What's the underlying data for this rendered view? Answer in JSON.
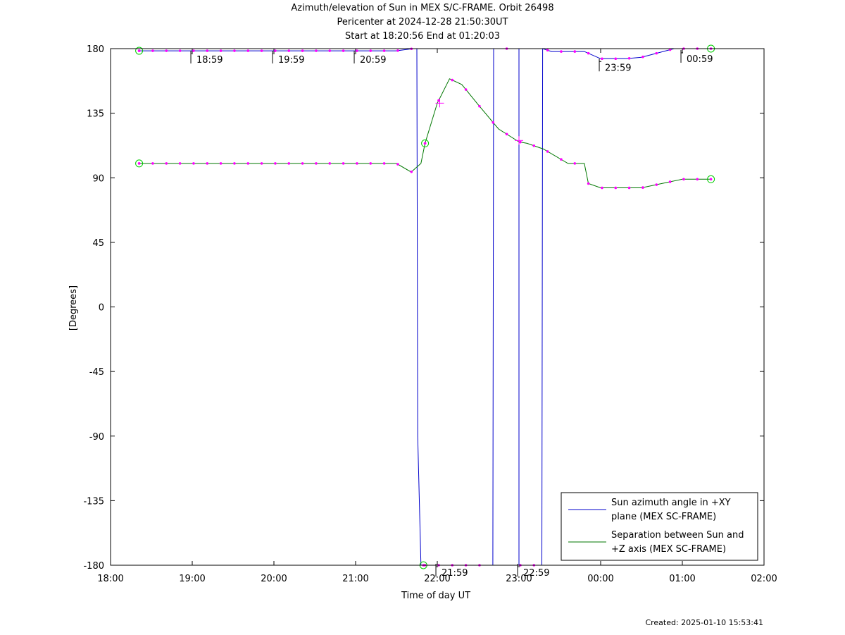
{
  "chart_data": {
    "type": "line",
    "title": "Azimuth/elevation of Sun in MEX S/C-FRAME.  Orbit 26498",
    "subtitle1": "Pericenter at 2024-12-28 21:50:30UT",
    "subtitle2": "Start at 18:20:56 End at 01:20:03",
    "xlabel": "Time of day UT",
    "ylabel": "[Degrees]",
    "xunit": "hours since 18:00",
    "xlim": [
      0,
      8
    ],
    "ylim": [
      -180,
      180
    ],
    "x_ticks": [
      {
        "v": 0,
        "label": "18:00"
      },
      {
        "v": 1,
        "label": "19:00"
      },
      {
        "v": 2,
        "label": "20:00"
      },
      {
        "v": 3,
        "label": "21:00"
      },
      {
        "v": 4,
        "label": "22:00"
      },
      {
        "v": 5,
        "label": "23:00"
      },
      {
        "v": 6,
        "label": "00:00"
      },
      {
        "v": 7,
        "label": "01:00"
      },
      {
        "v": 8,
        "label": "02:00"
      }
    ],
    "y_ticks": [
      180,
      135,
      90,
      45,
      0,
      -45,
      -90,
      -135,
      -180
    ],
    "legend_position": "bottom-right",
    "series": [
      {
        "name": "Sun azimuth angle in +XY plane (MEX SC-FRAME)",
        "legend_lines": [
          "Sun azimuth angle in +XY",
          "plane (MEX SC-FRAME)"
        ],
        "color": "#0000cc",
        "x": [
          0.35,
          0.5,
          1.0,
          1.5,
          2.0,
          2.5,
          3.0,
          3.5,
          3.7,
          3.75,
          3.76,
          3.8,
          4.0,
          4.3,
          4.5,
          4.68,
          4.69,
          4.75,
          5.0,
          5.0,
          5.0,
          5.1,
          5.15,
          5.28,
          5.29,
          5.4,
          5.8,
          6.0,
          6.3,
          6.5,
          6.9,
          7.0,
          7.2,
          7.35
        ],
        "y": [
          178.5,
          178.5,
          178.5,
          178.5,
          178.5,
          178.5,
          178.5,
          178.5,
          180,
          180,
          -90,
          -180,
          -180,
          -180,
          -180,
          -180,
          180,
          180,
          180,
          -180,
          -180,
          -180,
          -180,
          -180,
          180,
          178,
          178,
          173,
          173,
          174,
          180,
          180,
          180,
          180
        ]
      },
      {
        "name": "Separation between Sun and +Z axis (MEX SC-FRAME)",
        "legend_lines": [
          "Separation between Sun and",
          "+Z axis (MEX SC-FRAME)"
        ],
        "color": "#007700",
        "x": [
          0.35,
          1.0,
          2.0,
          3.0,
          3.5,
          3.68,
          3.8,
          3.85,
          4.0,
          4.15,
          4.3,
          4.5,
          4.75,
          5.0,
          5.1,
          5.3,
          5.6,
          5.8,
          5.85,
          6.0,
          6.5,
          6.75,
          7.0,
          7.35
        ],
        "y": [
          100,
          100,
          100,
          100,
          100,
          94,
          100,
          114,
          142,
          159,
          155,
          141,
          124,
          115,
          114,
          110,
          100,
          100,
          86,
          83,
          83,
          86,
          89,
          89
        ]
      }
    ],
    "orbit_markers": [
      {
        "label": "18:59",
        "x": 0.983,
        "y": 178.5
      },
      {
        "label": "19:59",
        "x": 1.983,
        "y": 178.5
      },
      {
        "label": "20:59",
        "x": 2.983,
        "y": 178.5
      },
      {
        "label": "21:59",
        "x": 3.983,
        "y": -180
      },
      {
        "label": "22:59",
        "x": 4.983,
        "y": -180
      },
      {
        "label": "23:59",
        "x": 5.983,
        "y": 173
      },
      {
        "label": "00:59",
        "x": 6.983,
        "y": 180
      }
    ],
    "circle_markers": [
      [
        0.35,
        178.5
      ],
      [
        0.35,
        100
      ],
      [
        3.85,
        114
      ],
      [
        3.83,
        -180
      ],
      [
        7.35,
        180
      ],
      [
        7.35,
        89
      ]
    ],
    "cross_markers": [
      [
        4.03,
        142
      ],
      [
        5.0,
        116
      ]
    ],
    "footer": "Created: 2025-01-10 15:53:41"
  }
}
